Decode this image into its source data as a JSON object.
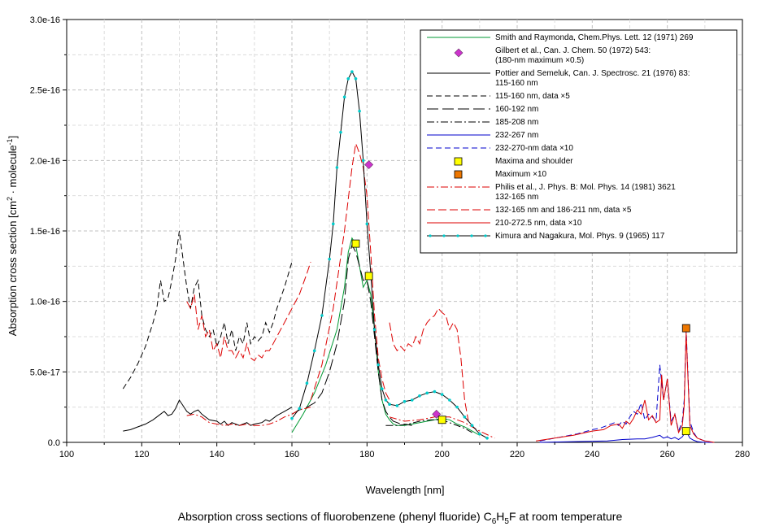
{
  "chart_data": {
    "type": "line",
    "title_parts": [
      "Absorption cross sections of fluorobenzene (phenyl fluoride) C",
      "6",
      "H",
      "5",
      "F at room temperature"
    ],
    "xlabel": "Wavelength [nm]",
    "ylabel_parts": [
      "Absorption cross section [cm",
      "2",
      " · molecule",
      "-1",
      "]"
    ],
    "xlim": [
      100,
      280
    ],
    "ylim": [
      0,
      3e-16
    ],
    "xticks": [
      100,
      120,
      140,
      160,
      180,
      200,
      220,
      240,
      260,
      280
    ],
    "xtick_labels": [
      "100",
      "120",
      "140",
      "160",
      "180",
      "200",
      "220",
      "240",
      "260",
      "280"
    ],
    "yticks": [
      0,
      5e-17,
      1e-16,
      1.5e-16,
      2e-16,
      2.5e-16,
      3e-16
    ],
    "ytick_labels": [
      "0.0",
      "5.0e-17",
      "1.0e-16",
      "1.5e-16",
      "2.0e-16",
      "2.5e-16",
      "3.0e-16"
    ],
    "grid": true,
    "legend_position": "top-right",
    "legend": [
      {
        "lines": [
          "Smith and Raymonda, Chem.Phys. Lett. 12 (1971) 269"
        ],
        "kind": "line",
        "color": "#009933",
        "dash": "none"
      },
      {
        "lines": [
          "Gilbert et al., Can. J. Chem. 50 (1972) 543:",
          "(180-nm maximum ×0.5)"
        ],
        "kind": "diamond",
        "color": "#cc33cc"
      },
      {
        "lines": [
          "Pottier and Semeluk, Can. J. Spectrosc. 21 (1976) 83:",
          "115-160 nm"
        ],
        "kind": "line",
        "color": "#000000",
        "dash": "none"
      },
      {
        "lines": [
          "115-160 nm, data ×5"
        ],
        "kind": "line",
        "color": "#000000",
        "dash": "7,4"
      },
      {
        "lines": [
          "160-192 nm"
        ],
        "kind": "line",
        "color": "#000000",
        "dash": "14,5"
      },
      {
        "lines": [
          "185-208 nm"
        ],
        "kind": "line",
        "color": "#000000",
        "dash": "9,3,2,3"
      },
      {
        "lines": [
          "232-267 nm"
        ],
        "kind": "line",
        "color": "#0000cc",
        "dash": "none"
      },
      {
        "lines": [
          "232-270-nm data ×10"
        ],
        "kind": "line",
        "color": "#0000cc",
        "dash": "7,4"
      },
      {
        "lines": [
          "Maxima and shoulder"
        ],
        "kind": "square",
        "color": "#ffff00"
      },
      {
        "lines": [
          "Maximum ×10"
        ],
        "kind": "square",
        "color": "#ee7700"
      },
      {
        "lines": [
          "Philis et al., J. Phys. B: Mol. Phys. 14 (1981) 3621",
          "132-165 nm"
        ],
        "kind": "line",
        "color": "#dd0000",
        "dash": "9,3,2,3"
      },
      {
        "lines": [
          "132-165 nm and 186-211 nm, data ×5"
        ],
        "kind": "line",
        "color": "#dd0000",
        "dash": "10,4"
      },
      {
        "lines": [
          "210-272.5 nm, data ×10"
        ],
        "kind": "line",
        "color": "#dd0000",
        "dash": "none"
      },
      {
        "lines": [
          "Kimura and Nagakura, Mol. Phys. 9 (1965) 117"
        ],
        "kind": "dotline",
        "color": "#000000",
        "dot": "#00cccc"
      }
    ],
    "series": [
      {
        "name": "Smith and Raymonda",
        "color": "#009933",
        "dash": "none",
        "x": [
          160,
          163,
          166,
          169,
          172,
          174,
          175,
          176,
          177,
          178,
          179,
          180,
          181,
          182,
          183,
          184,
          185,
          186,
          187,
          188,
          190,
          192,
          194,
          196,
          198,
          200,
          202,
          204,
          206,
          208,
          210
        ],
        "y": [
          7e-18,
          2e-17,
          3.5e-17,
          5.5e-17,
          8e-17,
          1.1e-16,
          1.35e-16,
          1.45e-16,
          1.4e-16,
          1.25e-16,
          1.1e-16,
          1.15e-16,
          1.05e-16,
          8e-17,
          5e-17,
          3e-17,
          2e-17,
          1.6e-17,
          1.3e-17,
          1.2e-17,
          1.2e-17,
          1.3e-17,
          1.4e-17,
          1.5e-17,
          1.6e-17,
          1.7e-17,
          1.6e-17,
          1.3e-17,
          1.1e-17,
          8e-18,
          5e-18
        ]
      },
      {
        "name": "Pottier 115-160 nm",
        "color": "#000000",
        "dash": "none",
        "x": [
          115,
          117,
          119,
          121,
          123,
          125,
          126,
          127,
          128,
          129,
          130,
          131,
          132,
          133,
          134,
          135,
          136,
          138,
          140,
          141,
          142,
          143,
          144,
          145,
          146,
          147,
          148,
          149,
          150,
          152,
          153,
          154,
          156,
          158,
          160
        ],
        "y": [
          8e-18,
          9e-18,
          1.1e-17,
          1.3e-17,
          1.6e-17,
          2e-17,
          2.2e-17,
          1.9e-17,
          2e-17,
          2.4e-17,
          3e-17,
          2.6e-17,
          2.2e-17,
          2e-17,
          2.2e-17,
          2.3e-17,
          2e-17,
          1.6e-17,
          1.5e-17,
          1.3e-17,
          1.5e-17,
          1.2e-17,
          1.4e-17,
          1.3e-17,
          1.2e-17,
          1.3e-17,
          1.4e-17,
          1.2e-17,
          1.3e-17,
          1.4e-17,
          1.6e-17,
          1.5e-17,
          1.9e-17,
          2.2e-17,
          2.5e-17
        ]
      },
      {
        "name": "Pottier 115-160 nm x5",
        "color": "#000000",
        "dash": "7,4",
        "x": [
          115,
          117,
          119,
          121,
          123,
          124,
          125,
          126,
          127,
          128,
          129,
          130,
          131,
          132,
          133,
          134,
          135,
          136,
          137,
          138,
          139,
          140,
          141,
          142,
          143,
          144,
          145,
          146,
          147,
          148,
          149,
          150,
          151,
          152,
          153,
          154,
          155,
          156,
          158,
          160
        ],
        "y": [
          3.8e-17,
          4.6e-17,
          5.6e-17,
          6.8e-17,
          8.5e-17,
          9.5e-17,
          1.15e-16,
          1e-16,
          1.02e-16,
          1.15e-16,
          1.3e-16,
          1.5e-16,
          1.3e-16,
          1.1e-16,
          9.5e-17,
          1.1e-16,
          1.15e-16,
          9e-17,
          8e-17,
          7.5e-17,
          8e-17,
          6.8e-17,
          7.5e-17,
          8.5e-17,
          7e-17,
          8e-17,
          6.5e-17,
          7.5e-17,
          7e-17,
          8.5e-17,
          7e-17,
          7.5e-17,
          7.2e-17,
          7.5e-17,
          8.5e-17,
          7.8e-17,
          8.5e-17,
          9.5e-17,
          1.1e-16,
          1.28e-16
        ]
      },
      {
        "name": "Pottier 160-192 nm",
        "color": "#000000",
        "dash": "14,5",
        "x": [
          160,
          162,
          164,
          166,
          168,
          170,
          172,
          174,
          175,
          176,
          177,
          178,
          179,
          180,
          181,
          182,
          183,
          184,
          185,
          186,
          187,
          188,
          189,
          190,
          192
        ],
        "y": [
          2e-17,
          2.3e-17,
          2.5e-17,
          2.8e-17,
          3.5e-17,
          5e-17,
          7e-17,
          1e-16,
          1.3e-16,
          1.4e-16,
          1.35e-16,
          1.25e-16,
          1.15e-16,
          1.15e-16,
          1e-16,
          7.5e-17,
          5e-17,
          3e-17,
          2.2e-17,
          1.8e-17,
          1.5e-17,
          1.4e-17,
          1.3e-17,
          1.3e-17,
          1.2e-17
        ]
      },
      {
        "name": "Pottier 185-208 nm",
        "color": "#000000",
        "dash": "9,3,2,3",
        "x": [
          185,
          188,
          191,
          194,
          197,
          200,
          203,
          206,
          208
        ],
        "y": [
          1.2e-17,
          1.2e-17,
          1.3e-17,
          1.5e-17,
          1.6e-17,
          1.6e-17,
          1.3e-17,
          1e-17,
          7e-18
        ]
      },
      {
        "name": "232-267 nm",
        "color": "#0000cc",
        "dash": "none",
        "x": [
          226,
          235,
          244,
          248,
          252,
          254,
          256,
          258,
          259,
          260,
          261,
          262,
          263,
          264,
          265,
          266,
          267,
          268,
          270,
          272
        ],
        "y": [
          0,
          5e-19,
          1e-18,
          2e-18,
          2.5e-18,
          2.5e-18,
          3.5e-18,
          5e-18,
          3e-18,
          4e-18,
          2.5e-18,
          3.5e-18,
          2e-18,
          4e-18,
          8e-18,
          3e-18,
          1.5e-18,
          5e-19,
          0,
          0
        ]
      },
      {
        "name": "232-270-nm x10",
        "color": "#0000cc",
        "dash": "7,4",
        "x": [
          226,
          232,
          236,
          240,
          242,
          244,
          246,
          247,
          248,
          249,
          250,
          251,
          252,
          253,
          254,
          255,
          256,
          257,
          258,
          259,
          260,
          261,
          262,
          263,
          264,
          264.5,
          265,
          266,
          267,
          268,
          270,
          272
        ],
        "y": [
          1e-18,
          4e-18,
          6e-18,
          9e-18,
          1e-17,
          1.2e-17,
          1.4e-17,
          1.2e-17,
          1.5e-17,
          1.3e-17,
          1.8e-17,
          2.2e-17,
          2e-17,
          2.8e-17,
          1.6e-17,
          2e-17,
          1.8e-17,
          1.5e-17,
          5.5e-17,
          3e-17,
          4.5e-17,
          1.5e-17,
          2e-17,
          8e-18,
          1.5e-17,
          3e-17,
          8e-17,
          1.5e-17,
          7e-18,
          3e-18,
          1e-18,
          0
        ]
      },
      {
        "name": "Philis 132-165 nm",
        "color": "#dd0000",
        "dash": "9,3,2,3",
        "x": [
          132,
          134,
          136,
          138,
          140,
          142,
          144,
          146,
          148,
          150,
          152,
          154,
          156,
          158,
          160,
          162,
          165
        ],
        "y": [
          1.9e-17,
          2e-17,
          1.8e-17,
          1.4e-17,
          1.3e-17,
          1.2e-17,
          1.3e-17,
          1.2e-17,
          1.3e-17,
          1.2e-17,
          1.2e-17,
          1.3e-17,
          1.5e-17,
          1.8e-17,
          2e-17,
          2.3e-17,
          2.5e-17
        ]
      },
      {
        "name": "Philis 132-165 nm and 186-211 nm x5",
        "color": "#dd0000",
        "dash": "10,4",
        "x": [
          132,
          133,
          134,
          135,
          136,
          137,
          138,
          139,
          140,
          141,
          142,
          143,
          144,
          145,
          146,
          147,
          148,
          149,
          150,
          151,
          152,
          153,
          154,
          155,
          156,
          157,
          158,
          160,
          162,
          164,
          165,
          null,
          186,
          187,
          188,
          189,
          190,
          191,
          192,
          193,
          194,
          195,
          196,
          197,
          198,
          199,
          200,
          201,
          202,
          203,
          204,
          205,
          206,
          207
        ],
        "y": [
          1e-16,
          9.5e-17,
          1.05e-16,
          8e-17,
          9e-17,
          7.5e-17,
          8e-17,
          6.5e-17,
          7e-17,
          6e-17,
          7.5e-17,
          6.5e-17,
          6.5e-17,
          6e-17,
          6.5e-17,
          6e-17,
          7e-17,
          6e-17,
          5.8e-17,
          6.2e-17,
          6e-17,
          6.5e-17,
          6.5e-17,
          7e-17,
          7.5e-17,
          8e-17,
          8.5e-17,
          9.5e-17,
          1.05e-16,
          1.2e-16,
          1.28e-16,
          null,
          8.5e-17,
          7e-17,
          6.5e-17,
          6.8e-17,
          6.5e-17,
          7e-17,
          6.8e-17,
          7.5e-17,
          7e-17,
          8e-17,
          8.5e-17,
          8.8e-17,
          9e-17,
          9.5e-17,
          9.2e-17,
          9e-17,
          8e-17,
          8.5e-17,
          8e-17,
          6e-17,
          3e-17,
          1.5e-17
        ]
      },
      {
        "name": "Philis 132-165 nm and 186-211 nm x5 (main band)",
        "color": "#dd0000",
        "dash": "10,4",
        "x": [
          165,
          168,
          171,
          174,
          176,
          177,
          178,
          179,
          180,
          181,
          182,
          183,
          184,
          185,
          186
        ],
        "y": [
          3e-17,
          5.5e-17,
          9.5e-17,
          1.5e-16,
          1.95e-16,
          2.12e-16,
          2.05e-16,
          1.95e-16,
          1.75e-16,
          1.35e-16,
          9e-17,
          6e-17,
          4.5e-17,
          3.5e-17,
          3e-17
        ]
      },
      {
        "name": "Philis 210-272.5 nm x10",
        "color": "#dd0000",
        "dash": "none",
        "x": [
          225,
          230,
          235,
          240,
          243,
          245,
          247,
          248,
          249,
          250,
          251,
          252,
          253,
          254,
          255,
          256,
          257,
          258,
          258.5,
          259,
          260,
          261,
          262,
          263,
          264,
          264.5,
          265,
          266,
          267,
          268,
          270,
          272.5
        ],
        "y": [
          1e-18,
          3e-18,
          5e-18,
          8e-18,
          9e-18,
          1.2e-17,
          1.3e-17,
          1e-17,
          1.5e-17,
          1.3e-17,
          1.7e-17,
          2.3e-17,
          2e-17,
          3e-17,
          1.6e-17,
          1.9e-17,
          1.4e-17,
          1.6e-17,
          4.8e-17,
          3e-17,
          4.5e-17,
          1.2e-17,
          2e-17,
          7e-18,
          1.2e-17,
          2.6e-17,
          7.8e-17,
          1.2e-17,
          6e-18,
          3e-18,
          1e-18,
          0
        ]
      },
      {
        "name": "Philis 186-211 nm",
        "color": "#dd0000",
        "dash": "9,3,2,3",
        "x": [
          186,
          190,
          194,
          198,
          202,
          206,
          210,
          214
        ],
        "y": [
          1.8e-17,
          1.5e-17,
          1.6e-17,
          1.8e-17,
          1.8e-17,
          1.4e-17,
          8e-18,
          3e-18
        ]
      },
      {
        "name": "Kimura and Nagakura",
        "color": "#000000",
        "dash": "none",
        "dots": "#00cccc",
        "x": [
          160,
          162,
          164,
          166,
          168,
          170,
          171,
          172,
          173,
          174,
          175,
          176,
          177,
          178,
          179,
          180,
          181,
          182,
          183,
          184,
          185,
          186,
          188,
          190,
          192,
          194,
          196,
          198,
          200,
          202,
          204,
          206,
          208,
          210,
          212
        ],
        "y": [
          1.7e-17,
          2.4e-17,
          4.2e-17,
          6.5e-17,
          9e-17,
          1.3e-16,
          1.55e-16,
          1.95e-16,
          2.2e-16,
          2.45e-16,
          2.58e-16,
          2.63e-16,
          2.58e-16,
          2.35e-16,
          2e-16,
          1.55e-16,
          1.2e-16,
          8e-17,
          5.5e-17,
          3.8e-17,
          3e-17,
          2.7e-17,
          2.6e-17,
          2.9e-17,
          3e-17,
          3.3e-17,
          3.5e-17,
          3.6e-17,
          3.4e-17,
          3e-17,
          2.5e-17,
          1.8e-17,
          1.2e-17,
          6e-18,
          3e-18
        ]
      }
    ],
    "markers": [
      {
        "name": "Gilbert diamond 180 nm",
        "shape": "diamond",
        "color": "#cc33cc",
        "x": 180.5,
        "y": 1.97e-16
      },
      {
        "name": "Gilbert diamond 199 nm",
        "shape": "diamond",
        "color": "#cc33cc",
        "x": 198.5,
        "y": 2e-17
      },
      {
        "name": "Maximum 177 nm",
        "shape": "square",
        "color": "#ffff00",
        "x": 177,
        "y": 1.41e-16
      },
      {
        "name": "Shoulder 180.5 nm",
        "shape": "square",
        "color": "#ffff00",
        "x": 180.5,
        "y": 1.18e-16
      },
      {
        "name": "Maximum 200 nm",
        "shape": "square",
        "color": "#ffff00",
        "x": 200,
        "y": 1.6e-17
      },
      {
        "name": "Maximum 265 nm",
        "shape": "square",
        "color": "#ffff00",
        "x": 265,
        "y": 8e-18
      },
      {
        "name": "Maximum x10 265 nm",
        "shape": "square",
        "color": "#ee7700",
        "x": 265,
        "y": 8.1e-17
      }
    ]
  }
}
